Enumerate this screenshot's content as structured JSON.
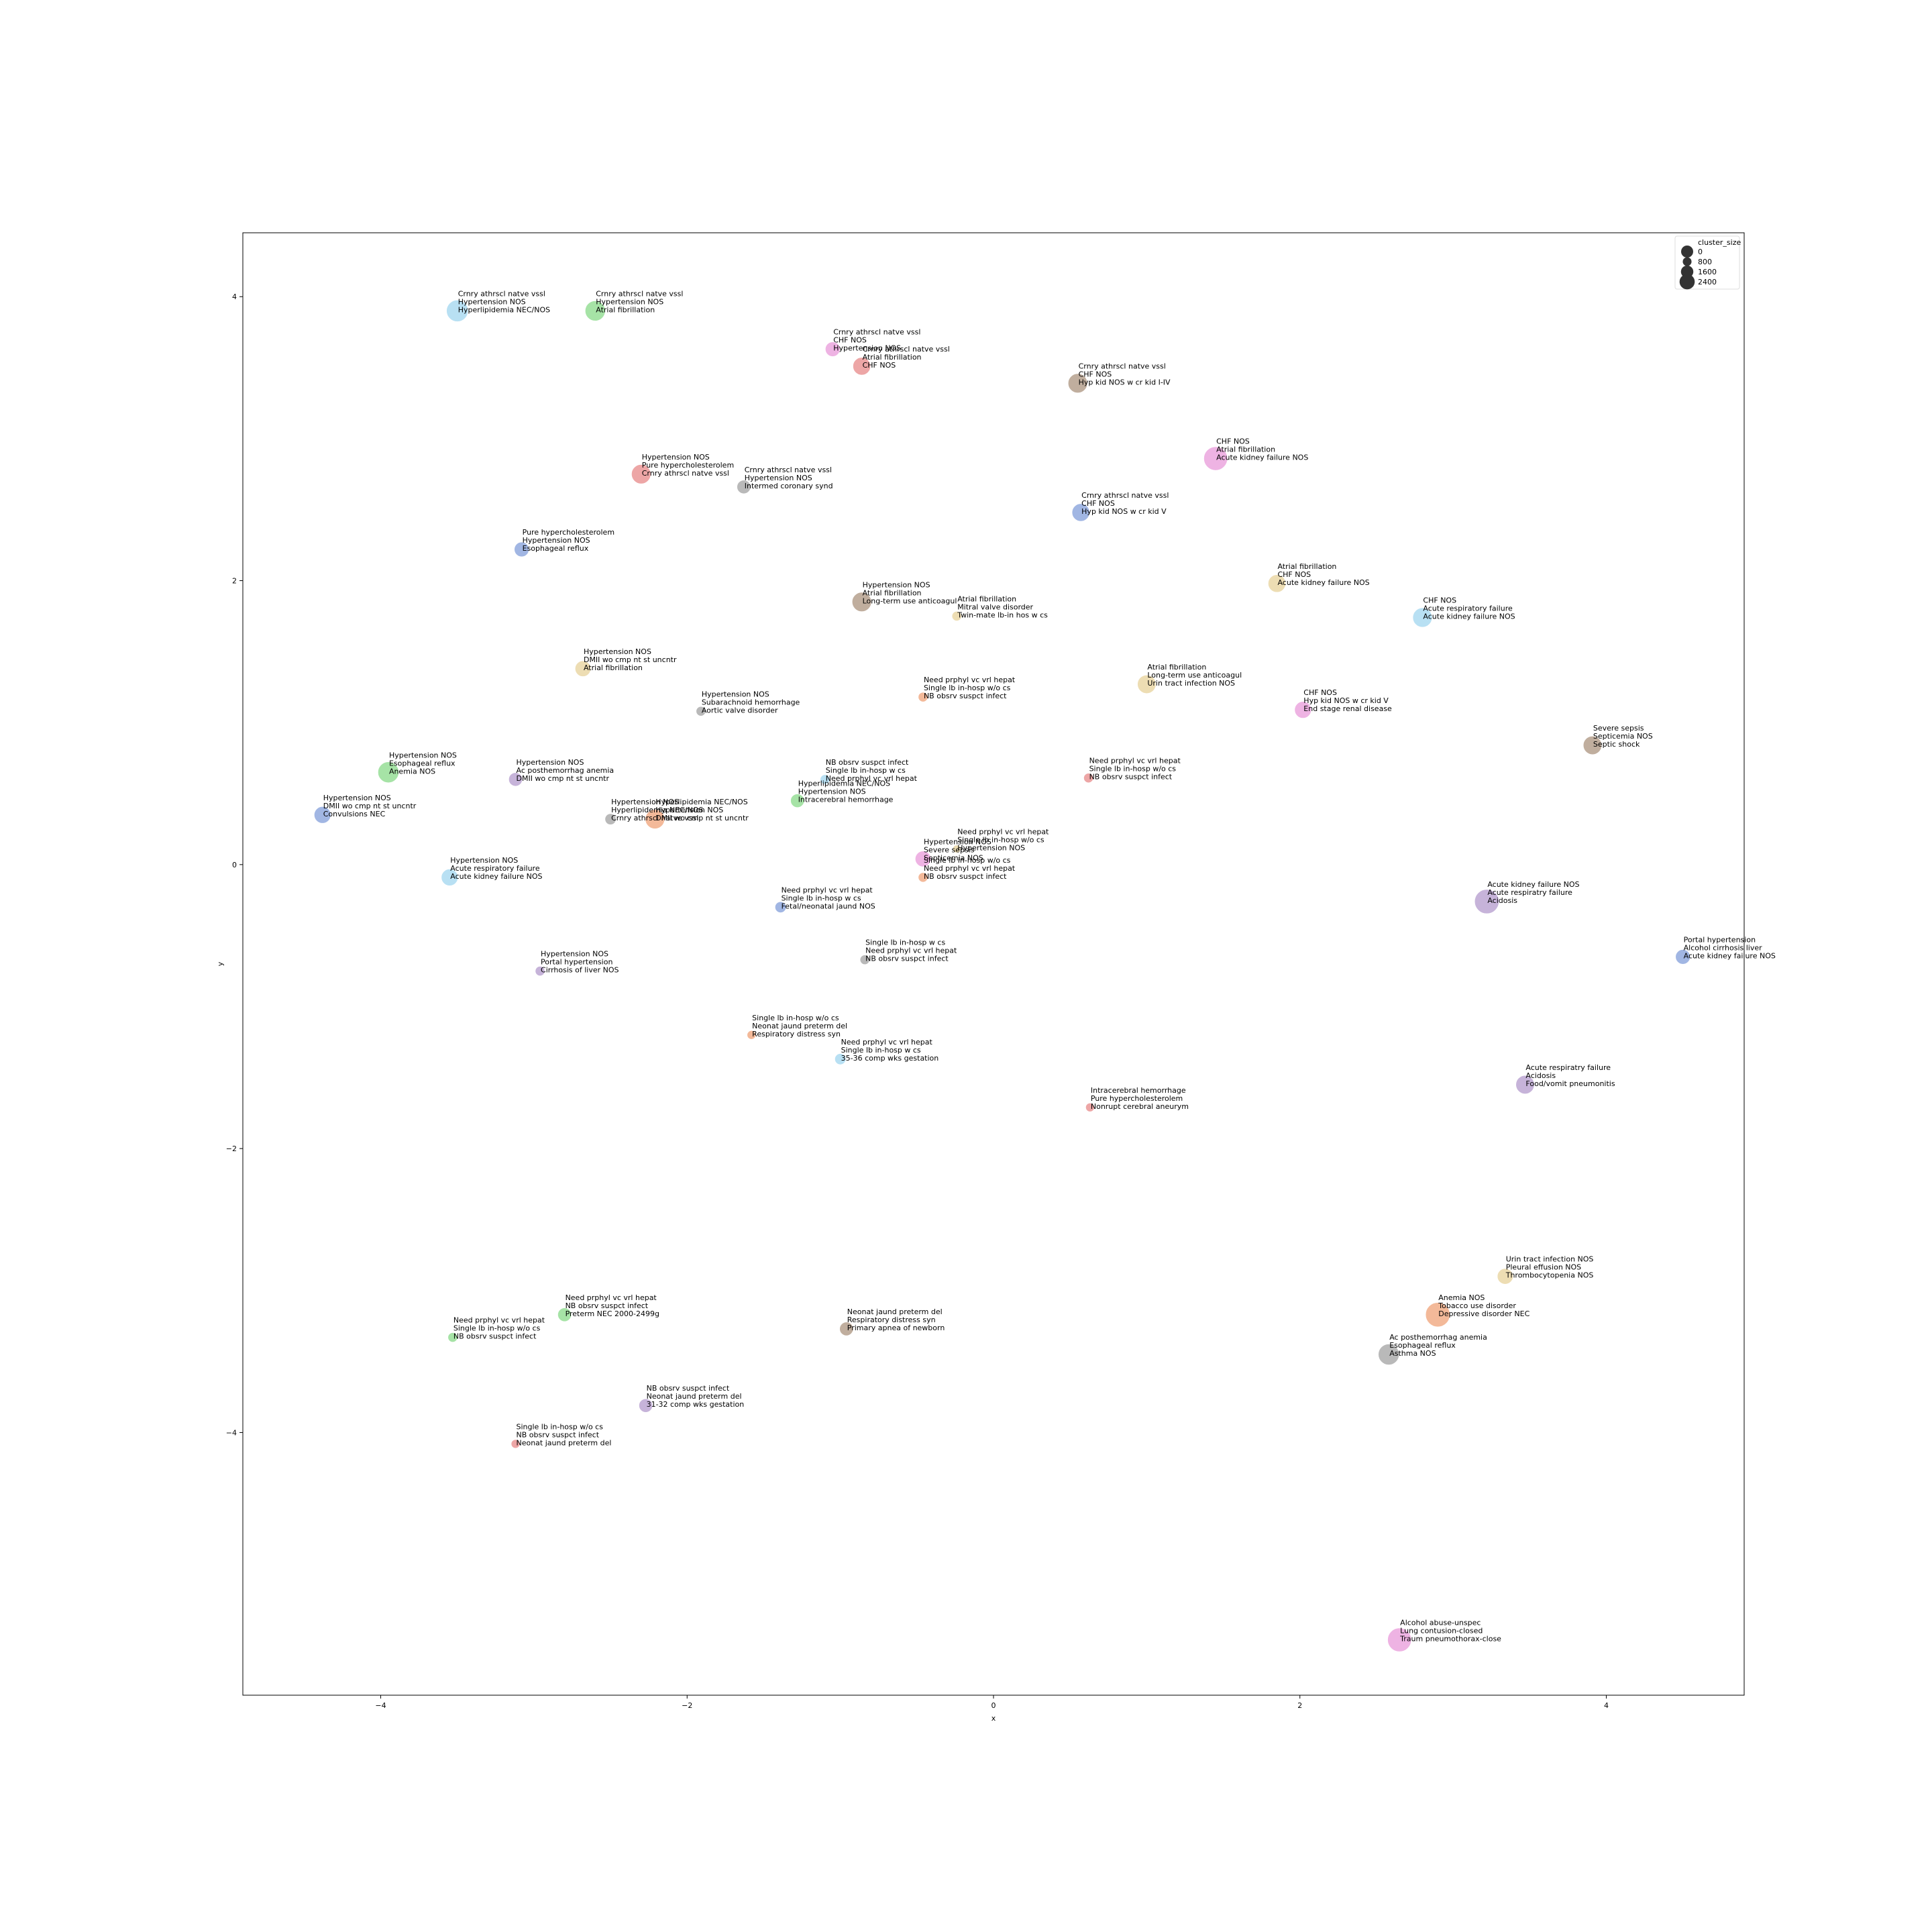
{
  "chart_data": {
    "type": "scatter",
    "xlabel": "x",
    "ylabel": "y",
    "xlim": [
      -4.9,
      4.9
    ],
    "ylim": [
      -5.85,
      4.45
    ],
    "x_ticks": [
      -4,
      -2,
      0,
      2,
      4
    ],
    "x_tick_labels": [
      "−4",
      "−2",
      "0",
      "2",
      "4"
    ],
    "y_ticks": [
      -4,
      -2,
      0,
      2,
      4
    ],
    "y_tick_labels": [
      "−4",
      "−2",
      "0",
      "2",
      "4"
    ],
    "grid": false,
    "legend": {
      "title": "cluster_size",
      "placement": "top-right",
      "entries": [
        {
          "label": "0",
          "size": 0
        },
        {
          "label": "800",
          "size": 800
        },
        {
          "label": "1600",
          "size": 1600
        },
        {
          "label": "2400",
          "size": 2400
        }
      ]
    },
    "points": [
      {
        "x": -3.5,
        "y": 3.9,
        "size": 1500,
        "color": "#a6d8f0",
        "lines": [
          "Crnry athrscl natve vssl",
          "Hypertension NOS",
          "Hyperlipidemia NEC/NOS"
        ]
      },
      {
        "x": -2.6,
        "y": 3.9,
        "size": 1300,
        "color": "#90dc90",
        "lines": [
          "Crnry athrscl natve vssl",
          "Hypertension NOS",
          "Atrial fibrillation"
        ]
      },
      {
        "x": -1.05,
        "y": 3.63,
        "size": 700,
        "color": "#eaa0dc",
        "lines": [
          "Crnry athrscl natve vssl",
          "CHF NOS",
          "Hypertension NOS"
        ]
      },
      {
        "x": -0.86,
        "y": 3.51,
        "size": 1000,
        "color": "#e89090",
        "lines": [
          "Crnry athrscl natve vssl",
          "Atrial fibrillation",
          "CHF NOS"
        ]
      },
      {
        "x": 0.55,
        "y": 3.39,
        "size": 1200,
        "color": "#b09a86",
        "lines": [
          "Crnry athrscl natve vssl",
          "CHF NOS",
          "Hyp kid NOS w cr kid I-IV"
        ]
      },
      {
        "x": 1.45,
        "y": 2.86,
        "size": 1800,
        "color": "#eaa0dc",
        "lines": [
          "CHF NOS",
          "Atrial fibrillation",
          "Acute kidney failure NOS"
        ]
      },
      {
        "x": -2.3,
        "y": 2.75,
        "size": 1200,
        "color": "#e89090",
        "lines": [
          "Hypertension NOS",
          "Pure hypercholesterolem",
          "Crnry athrscl natve vssl"
        ]
      },
      {
        "x": -1.63,
        "y": 2.66,
        "size": 600,
        "color": "#a8a8a8",
        "lines": [
          "Crnry athrscl natve vssl",
          "Hypertension NOS",
          "Intermed coronary synd"
        ]
      },
      {
        "x": 0.57,
        "y": 2.48,
        "size": 1000,
        "color": "#8aa4dc",
        "lines": [
          "Crnry athrscl natve vssl",
          "CHF NOS",
          "Hyp kid NOS w cr kid V"
        ]
      },
      {
        "x": -3.08,
        "y": 2.22,
        "size": 700,
        "color": "#8aa4dc",
        "lines": [
          "Pure hypercholesterolem",
          "Hypertension NOS",
          "Esophageal reflux"
        ]
      },
      {
        "x": 1.85,
        "y": 1.98,
        "size": 1000,
        "color": "#e8d4a0",
        "lines": [
          "Atrial fibrillation",
          "CHF NOS",
          "Acute kidney failure NOS"
        ]
      },
      {
        "x": -0.86,
        "y": 1.85,
        "size": 1200,
        "color": "#b09a86",
        "lines": [
          "Hypertension NOS",
          "Atrial fibrillation",
          "Long-term use anticoagul"
        ]
      },
      {
        "x": -0.24,
        "y": 1.75,
        "size": 300,
        "color": "#e8d4a0",
        "lines": [
          "Atrial fibrillation",
          "Mitral valve disorder",
          "Twin-mate lb-in hos w cs"
        ]
      },
      {
        "x": 2.8,
        "y": 1.74,
        "size": 1200,
        "color": "#a6d8f0",
        "lines": [
          "CHF NOS",
          "Acute respiratory failure",
          "Acute kidney failure NOS"
        ]
      },
      {
        "x": -2.68,
        "y": 1.38,
        "size": 800,
        "color": "#e8d4a0",
        "lines": [
          "Hypertension NOS",
          "DMII wo cmp nt st uncntr",
          "Atrial fibrillation"
        ]
      },
      {
        "x": 1.0,
        "y": 1.27,
        "size": 1100,
        "color": "#e8d4a0",
        "lines": [
          "Atrial fibrillation",
          "Long-term use anticoagul",
          "Urin tract infection NOS"
        ]
      },
      {
        "x": -0.46,
        "y": 1.18,
        "size": 300,
        "color": "#f0a880",
        "lines": [
          "Need prphyl vc vrl hepat",
          "Single lb in-hosp w/o cs",
          "NB obsrv suspct infect"
        ]
      },
      {
        "x": -1.91,
        "y": 1.08,
        "size": 300,
        "color": "#a8a8a8",
        "lines": [
          "Hypertension NOS",
          "Subarachnoid hemorrhage",
          "Aortic valve disorder"
        ]
      },
      {
        "x": 2.02,
        "y": 1.09,
        "size": 900,
        "color": "#eaa0dc",
        "lines": [
          "CHF NOS",
          "Hyp kid NOS w cr kid V",
          "End stage renal disease"
        ]
      },
      {
        "x": 3.91,
        "y": 0.84,
        "size": 1100,
        "color": "#b09a86",
        "lines": [
          "Severe sepsis",
          "Septicemia NOS",
          "Septic shock"
        ]
      },
      {
        "x": -3.95,
        "y": 0.65,
        "size": 1400,
        "color": "#90dc90",
        "lines": [
          "Hypertension NOS",
          "Esophageal reflux",
          "Anemia NOS"
        ]
      },
      {
        "x": -3.12,
        "y": 0.6,
        "size": 600,
        "color": "#b8a0d0",
        "lines": [
          "Hypertension NOS",
          "Ac posthemorrhag anemia",
          "DMII wo cmp nt st uncntr"
        ]
      },
      {
        "x": -1.1,
        "y": 0.6,
        "size": 300,
        "color": "#a6d8f0",
        "lines": [
          "NB obsrv suspct infect",
          "Single lb in-hosp w cs",
          "Need prphyl vc vrl hepat"
        ]
      },
      {
        "x": 0.62,
        "y": 0.61,
        "size": 300,
        "color": "#e89090",
        "lines": [
          "Need prphyl vc vrl hepat",
          "Single lb in-hosp w/o cs",
          "NB obsrv suspct infect"
        ]
      },
      {
        "x": -1.28,
        "y": 0.45,
        "size": 600,
        "color": "#90dc90",
        "lines": [
          "Hyperlipidemia NEC/NOS",
          "Hypertension NOS",
          "Intracerebral hemorrhage"
        ]
      },
      {
        "x": -4.38,
        "y": 0.35,
        "size": 900,
        "color": "#8aa4dc",
        "lines": [
          "Hypertension NOS",
          "DMII wo cmp nt st uncntr",
          "Convulsions NEC"
        ]
      },
      {
        "x": -2.5,
        "y": 0.32,
        "size": 400,
        "color": "#a8a8a8",
        "lines": [
          "Hypertension NOS",
          "Hyperlipidemia NEC/NOS",
          "Crnry athrscl natve vssl"
        ]
      },
      {
        "x": -2.21,
        "y": 0.32,
        "size": 1200,
        "color": "#f0a880",
        "lines": [
          "Hyperlipidemia NEC/NOS",
          "Hypertension NOS",
          "DMII wo cmp nt st uncntr"
        ]
      },
      {
        "x": -0.46,
        "y": 0.04,
        "size": 800,
        "color": "#eaa0dc",
        "lines": [
          "Hypertension NOS",
          "Severe sepsis",
          "Septicemia NOS"
        ]
      },
      {
        "x": -0.24,
        "y": 0.11,
        "size": 200,
        "color": "#e8d4a0",
        "lines": [
          "Need prphyl vc vrl hepat",
          "Single lb in-hosp w/o cs",
          "Hypertension NOS"
        ]
      },
      {
        "x": -0.46,
        "y": -0.09,
        "size": 300,
        "color": "#f0a880",
        "lines": [
          "Single lb in-hosp w/o cs",
          "Need prphyl vc vrl hepat",
          "NB obsrv suspct infect"
        ]
      },
      {
        "x": -3.55,
        "y": -0.09,
        "size": 900,
        "color": "#a6d8f0",
        "lines": [
          "Hypertension NOS",
          "Acute respiratory failure",
          "Acute kidney failure NOS"
        ]
      },
      {
        "x": 3.22,
        "y": -0.26,
        "size": 1900,
        "color": "#b8a0d0",
        "lines": [
          "Acute kidney failure NOS",
          "Acute respiratry failure",
          "Acidosis"
        ]
      },
      {
        "x": -1.39,
        "y": -0.3,
        "size": 400,
        "color": "#8aa4dc",
        "lines": [
          "Need prphyl vc vrl hepat",
          "Single lb in-hosp w cs",
          "Fetal/neonatal jaund NOS"
        ]
      },
      {
        "x": 4.5,
        "y": -0.65,
        "size": 700,
        "color": "#8aa4dc",
        "lines": [
          "Portal hypertension",
          "Alcohol cirrhosis liver",
          "Acute kidney failure NOS"
        ]
      },
      {
        "x": -0.84,
        "y": -0.67,
        "size": 300,
        "color": "#a8a8a8",
        "lines": [
          "Single lb in-hosp w cs",
          "Need prphyl vc vrl hepat",
          "NB obsrv suspct infect"
        ]
      },
      {
        "x": -2.96,
        "y": -0.75,
        "size": 300,
        "color": "#b8a0d0",
        "lines": [
          "Hypertension NOS",
          "Portal hypertension",
          "Cirrhosis of liver NOS"
        ]
      },
      {
        "x": -1.58,
        "y": -1.2,
        "size": 250,
        "color": "#f0a880",
        "lines": [
          "Single lb in-hosp w/o cs",
          "Neonat jaund preterm del",
          "Respiratory distress syn"
        ]
      },
      {
        "x": -1.0,
        "y": -1.37,
        "size": 400,
        "color": "#a6d8f0",
        "lines": [
          "Need prphyl vc vrl hepat",
          "Single lb in-hosp w cs",
          "35-36 comp wks gestation"
        ]
      },
      {
        "x": 3.47,
        "y": -1.55,
        "size": 1100,
        "color": "#b8a0d0",
        "lines": [
          "Acute respiratry failure",
          "Acidosis",
          "Food/vomit pneumonitis"
        ]
      },
      {
        "x": 0.63,
        "y": -1.71,
        "size": 250,
        "color": "#e89090",
        "lines": [
          "Intracerebral hemorrhage",
          "Pure hypercholesterolem",
          "Nonrupt cerebral aneurym"
        ]
      },
      {
        "x": 3.34,
        "y": -2.9,
        "size": 800,
        "color": "#e8d4a0",
        "lines": [
          "Urin tract infection NOS",
          "Pleural effusion NOS",
          "Thrombocytopenia NOS"
        ]
      },
      {
        "x": 2.9,
        "y": -3.17,
        "size": 1900,
        "color": "#f0a880",
        "lines": [
          "Anemia NOS",
          "Tobacco use disorder",
          "Depressive disorder NEC"
        ]
      },
      {
        "x": -2.8,
        "y": -3.17,
        "size": 600,
        "color": "#90dc90",
        "lines": [
          "Need prphyl vc vrl hepat",
          "NB obsrv suspct infect",
          "Preterm NEC 2000-2499g"
        ]
      },
      {
        "x": -0.96,
        "y": -3.27,
        "size": 600,
        "color": "#b09a86",
        "lines": [
          "Neonat jaund preterm del",
          "Respiratory distress syn",
          "Primary apnea of newborn"
        ]
      },
      {
        "x": -3.53,
        "y": -3.33,
        "size": 300,
        "color": "#90dc90",
        "lines": [
          "Need prphyl vc vrl hepat",
          "Single lb in-hosp w/o cs",
          "NB obsrv suspct infect"
        ]
      },
      {
        "x": 2.58,
        "y": -3.45,
        "size": 1400,
        "color": "#a8a8a8",
        "lines": [
          "Ac posthemorrhag anemia",
          "Esophageal reflux",
          "Asthma NOS"
        ]
      },
      {
        "x": -2.27,
        "y": -3.81,
        "size": 600,
        "color": "#b8a0d0",
        "lines": [
          "NB obsrv suspct infect",
          "Neonat jaund preterm del",
          "31-32 comp wks gestation"
        ]
      },
      {
        "x": -3.12,
        "y": -4.08,
        "size": 250,
        "color": "#e89090",
        "lines": [
          "Single lb in-hosp w/o cs",
          "NB obsrv suspct infect",
          "Neonat jaund preterm del"
        ]
      },
      {
        "x": 2.65,
        "y": -5.46,
        "size": 1800,
        "color": "#eaa0dc",
        "lines": [
          "Alcohol abuse-unspec",
          "Lung contusion-closed",
          "Traum pneumothorax-close"
        ]
      }
    ]
  }
}
